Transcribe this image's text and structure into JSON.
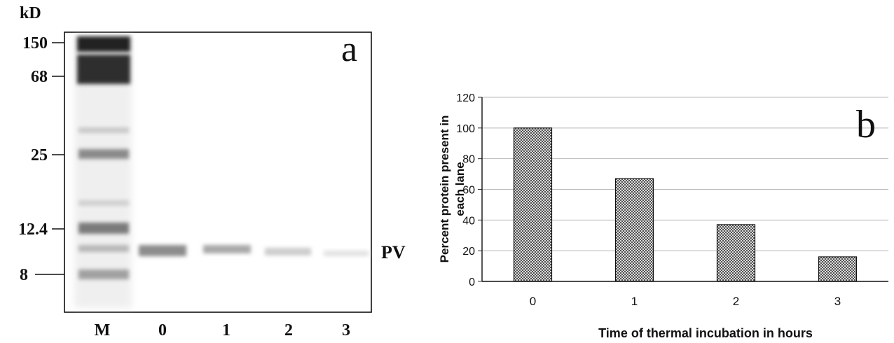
{
  "panel_a": {
    "unit_label": "kD",
    "marker_labels": [
      "150",
      "68",
      "25",
      "12.4",
      "8"
    ],
    "lane_labels": [
      "M",
      "0",
      "1",
      "2",
      "3"
    ],
    "band_label": "PV",
    "panel_letter": "a"
  },
  "chart_data": {
    "type": "bar",
    "categories": [
      "0",
      "1",
      "2",
      "3"
    ],
    "values": [
      100,
      67,
      37,
      16
    ],
    "title": "",
    "xlabel": "Time of thermal incubation in hours",
    "ylabel": "Percent protein present in each lane",
    "ylim": [
      0,
      120
    ],
    "yticks": [
      0,
      20,
      40,
      60,
      80,
      100,
      120
    ],
    "grid": true,
    "panel_letter": "b"
  }
}
